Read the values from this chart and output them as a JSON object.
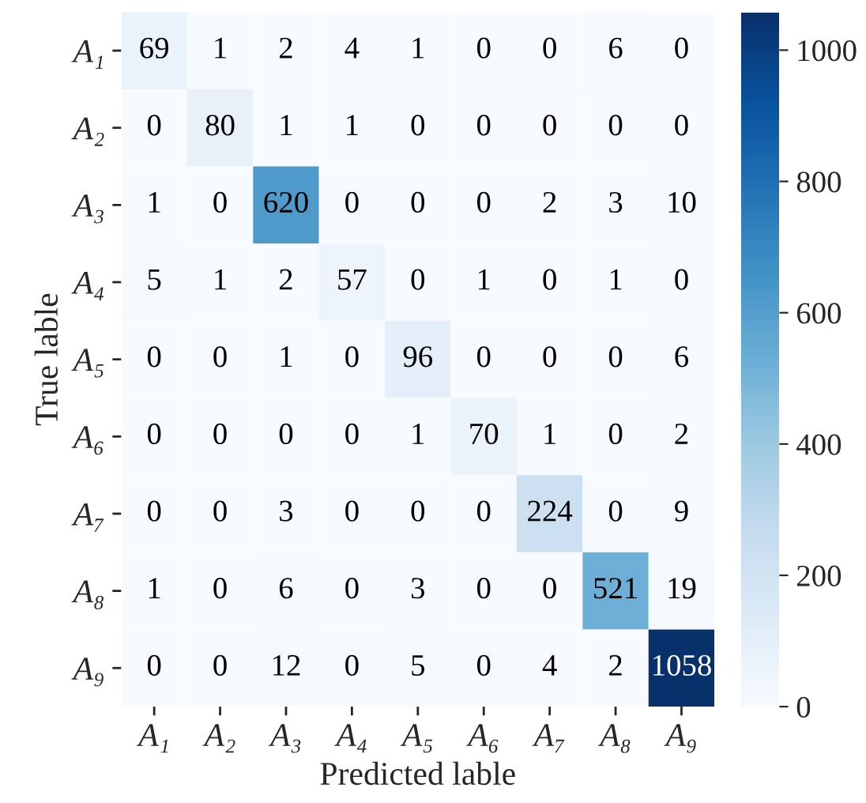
{
  "chart_data": {
    "type": "heatmap",
    "xlabel": "Predicted lable",
    "ylabel": "True lable",
    "categories": [
      "A₁",
      "A₂",
      "A₃",
      "A₄",
      "A₅",
      "A₆",
      "A₇",
      "A₈",
      "A₉"
    ],
    "y_categories": [
      "A₁",
      "A₂",
      "A₃",
      "A₄",
      "A₅",
      "A₆",
      "A₇",
      "A₈",
      "A₉"
    ],
    "cells": [
      [
        69,
        1,
        2,
        4,
        1,
        0,
        0,
        6,
        0
      ],
      [
        0,
        80,
        1,
        1,
        0,
        0,
        0,
        0,
        0
      ],
      [
        1,
        0,
        620,
        0,
        0,
        0,
        2,
        3,
        10
      ],
      [
        5,
        1,
        2,
        57,
        0,
        1,
        0,
        1,
        0
      ],
      [
        0,
        0,
        1,
        0,
        96,
        0,
        0,
        0,
        6
      ],
      [
        0,
        0,
        0,
        0,
        1,
        70,
        1,
        0,
        2
      ],
      [
        0,
        0,
        3,
        0,
        0,
        0,
        224,
        0,
        9
      ],
      [
        1,
        0,
        6,
        0,
        3,
        0,
        0,
        521,
        19
      ],
      [
        0,
        0,
        12,
        0,
        5,
        0,
        4,
        2,
        1058
      ]
    ],
    "clim": [
      0,
      1058
    ],
    "cticks": [
      0,
      200,
      400,
      600,
      800,
      1000
    ],
    "data_labels": true
  }
}
